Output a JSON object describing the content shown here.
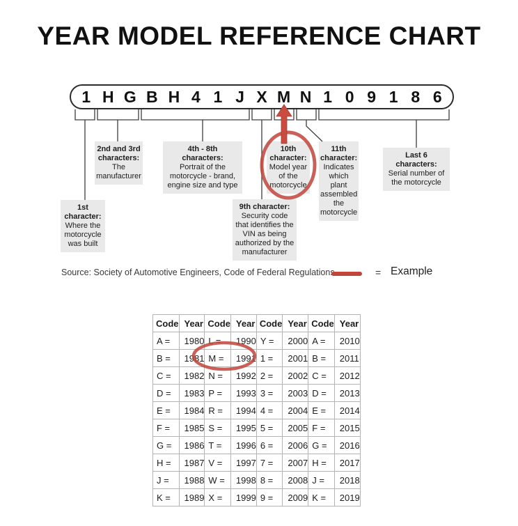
{
  "title": "YEAR MODEL REFERENCE CHART",
  "vin": {
    "characters": [
      "1",
      "H",
      "G",
      "B",
      "H",
      "4",
      "1",
      "J",
      "X",
      "M",
      "N",
      "1",
      "0",
      "9",
      "1",
      "8",
      "6"
    ],
    "highlighted_character": "M"
  },
  "callouts": {
    "first": {
      "heading": "1st\ncharacter:",
      "body": "Where the\nmotorcycle\nwas built"
    },
    "second_third": {
      "heading": "2nd and 3rd\ncharacters:",
      "body": "The\nmanufacturer"
    },
    "fourth_eighth": {
      "heading": "4th - 8th\ncharacters:",
      "body": "Portrait of the\nmotorcycle - brand,\nengine size and type"
    },
    "ninth": {
      "heading": "9th character:",
      "body": "Security code\nthat identifies the\nVIN as being\nauthorized by the\nmanufacturer"
    },
    "tenth": {
      "heading": "10th\ncharacter:",
      "body": "Model year\nof the\nmotorcycle"
    },
    "eleventh": {
      "heading": "11th\ncharacter:",
      "body": "Indicates\nwhich plant\nassembled\nthe\nmotorcycle"
    },
    "last_six": {
      "heading": "Last 6\ncharacters:",
      "body": "Serial number of\nthe motorcycle"
    }
  },
  "legend": {
    "source_text": "Source:  Society of Automotive Engineers, Code of Federal Regulations",
    "equals_sign": "=",
    "example_label": "Example"
  },
  "colors": {
    "highlight_red": "#c0453c",
    "arrow_red_fill": "#ca4c41",
    "arrow_red_edge": "#a33a30",
    "box_gray": "#e9e9e9",
    "line_gray": "#3d3d3d",
    "table_border": "#b3b3b3"
  },
  "table": {
    "headers": [
      "Code",
      "Year",
      "Code",
      "Year",
      "Code",
      "Year",
      "Code",
      "Year"
    ],
    "rows": [
      [
        "A =",
        "1980",
        "L =",
        "1990",
        "Y =",
        "2000",
        "A =",
        "2010"
      ],
      [
        "B =",
        "1981",
        "M =",
        "1991",
        "1 =",
        "2001",
        "B =",
        "2011"
      ],
      [
        "C =",
        "1982",
        "N =",
        "1992",
        "2 =",
        "2002",
        "C =",
        "2012"
      ],
      [
        "D =",
        "1983",
        "P =",
        "1993",
        "3 =",
        "2003",
        "D =",
        "2013"
      ],
      [
        "E =",
        "1984",
        "R =",
        "1994",
        "4 =",
        "2004",
        "E =",
        "2014"
      ],
      [
        "F =",
        "1985",
        "S =",
        "1995",
        "5 =",
        "2005",
        "F =",
        "2015"
      ],
      [
        "G =",
        "1986",
        "T =",
        "1996",
        "6 =",
        "2006",
        "G =",
        "2016"
      ],
      [
        "H =",
        "1987",
        "V =",
        "1997",
        "7 =",
        "2007",
        "H =",
        "2017"
      ],
      [
        "J =",
        "1988",
        "W =",
        "1998",
        "8 =",
        "2008",
        "J =",
        "2018"
      ],
      [
        "K =",
        "1989",
        "X =",
        "1999",
        "9 =",
        "2009",
        "K =",
        "2019"
      ]
    ],
    "highlighted_cells": "M = 1991"
  }
}
